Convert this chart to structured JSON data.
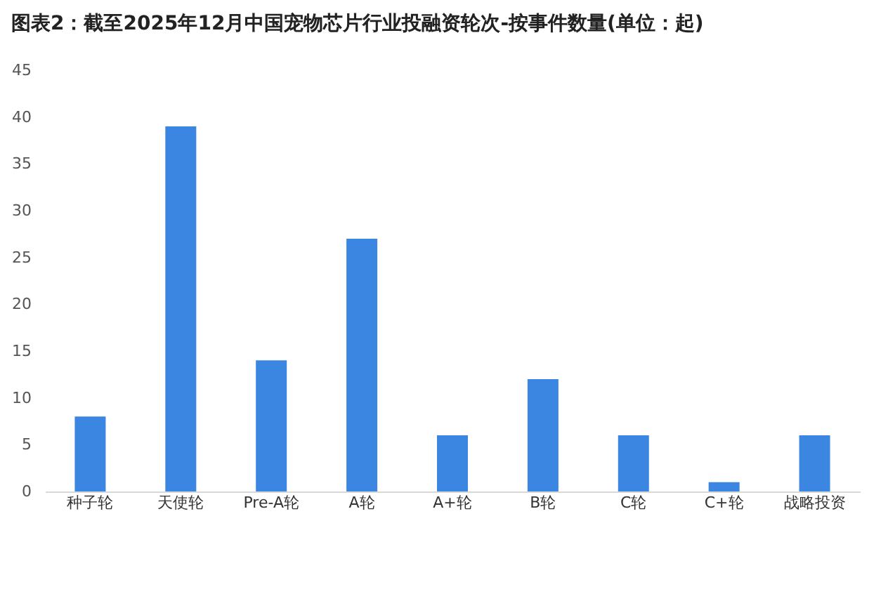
{
  "chart_data": {
    "type": "bar",
    "title": "图表2：截至2025年12月中国宠物芯片行业投融资轮次-按事件数量(单位：起)",
    "categories": [
      "种子轮",
      "天使轮",
      "Pre-A轮",
      "A轮",
      "A+轮",
      "B轮",
      "C轮",
      "C+轮",
      "战略投资"
    ],
    "values": [
      8,
      39,
      14,
      27,
      6,
      12,
      6,
      1,
      6
    ],
    "color": "#3a86e0",
    "ylim": [
      0,
      45
    ],
    "yticks": [
      0,
      5,
      10,
      15,
      20,
      25,
      30,
      35,
      40,
      45
    ],
    "grid": false
  }
}
